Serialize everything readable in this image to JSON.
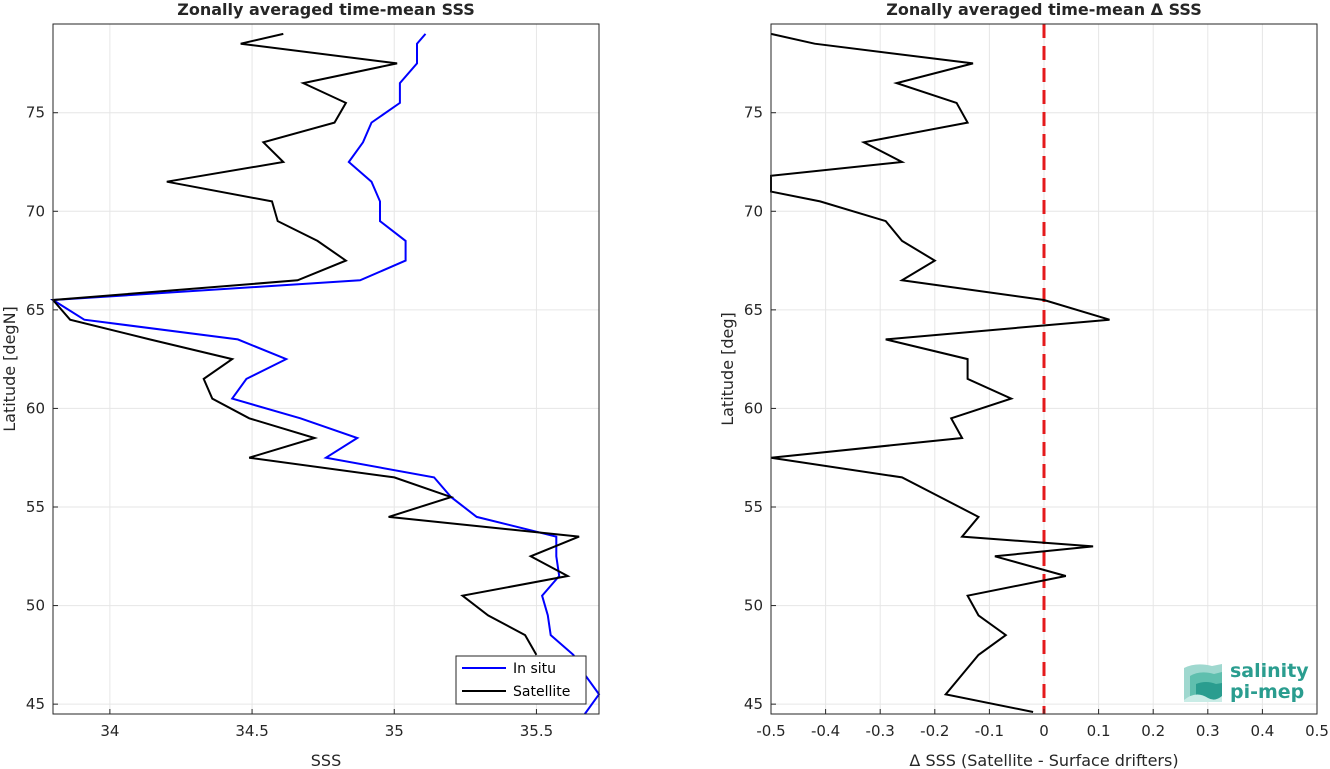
{
  "chart_data": [
    {
      "type": "line",
      "title": "Zonally averaged time-mean SSS",
      "xlabel": "SSS",
      "ylabel": "Latitude [degN]",
      "xlim": [
        33.8,
        35.72
      ],
      "ylim": [
        44.5,
        79.5
      ],
      "xticks": [
        "34",
        "34.5",
        "35",
        "35.5"
      ],
      "xtick_values": [
        34,
        34.5,
        35,
        35.5
      ],
      "yticks": [
        "45",
        "50",
        "55",
        "60",
        "65",
        "70",
        "75"
      ],
      "ytick_values": [
        45,
        50,
        55,
        60,
        65,
        70,
        75
      ],
      "grid": true,
      "legend": "bottom-right",
      "series": [
        {
          "name": "In situ",
          "color": "#0000ff",
          "points": [
            [
              35.11,
              79
            ],
            [
              35.08,
              78.5
            ],
            [
              35.08,
              77.5
            ],
            [
              35.02,
              76.5
            ],
            [
              35.02,
              75.5
            ],
            [
              34.92,
              74.5
            ],
            [
              34.89,
              73.5
            ],
            [
              34.84,
              72.5
            ],
            [
              34.92,
              71.5
            ],
            [
              34.95,
              70.5
            ],
            [
              34.95,
              69.5
            ],
            [
              35.04,
              68.5
            ],
            [
              35.04,
              67.5
            ],
            [
              34.88,
              66.5
            ],
            [
              33.8,
              65.5
            ],
            [
              33.91,
              64.5
            ],
            [
              34.45,
              63.5
            ],
            [
              34.62,
              62.5
            ],
            [
              34.48,
              61.5
            ],
            [
              34.43,
              60.5
            ],
            [
              34.67,
              59.5
            ],
            [
              34.87,
              58.5
            ],
            [
              34.76,
              57.5
            ],
            [
              35.14,
              56.5
            ],
            [
              35.2,
              55.5
            ],
            [
              35.29,
              54.5
            ],
            [
              35.57,
              53.5
            ],
            [
              35.57,
              52.5
            ],
            [
              35.58,
              51.5
            ],
            [
              35.52,
              50.5
            ],
            [
              35.54,
              49.5
            ],
            [
              35.55,
              48.5
            ],
            [
              35.63,
              47.5
            ],
            [
              35.67,
              46.5
            ],
            [
              35.72,
              45.5
            ],
            [
              35.67,
              44.5
            ]
          ]
        },
        {
          "name": "Satellite",
          "color": "#000000",
          "points": [
            [
              34.61,
              79
            ],
            [
              34.46,
              78.5
            ],
            [
              35.01,
              77.5
            ],
            [
              34.68,
              76.5
            ],
            [
              34.83,
              75.5
            ],
            [
              34.79,
              74.5
            ],
            [
              34.54,
              73.5
            ],
            [
              34.61,
              72.5
            ],
            [
              34.2,
              71.5
            ],
            [
              34.57,
              70.5
            ],
            [
              34.59,
              69.5
            ],
            [
              34.73,
              68.5
            ],
            [
              34.83,
              67.5
            ],
            [
              34.66,
              66.5
            ],
            [
              33.8,
              65.5
            ],
            [
              33.86,
              64.5
            ],
            [
              34.14,
              63.5
            ],
            [
              34.43,
              62.5
            ],
            [
              34.33,
              61.5
            ],
            [
              34.36,
              60.5
            ],
            [
              34.49,
              59.5
            ],
            [
              34.72,
              58.5
            ],
            [
              34.49,
              57.5
            ],
            [
              35.0,
              56.5
            ],
            [
              35.2,
              55.5
            ],
            [
              34.98,
              54.5
            ],
            [
              35.65,
              53.5
            ],
            [
              35.48,
              52.5
            ],
            [
              35.61,
              51.5
            ],
            [
              35.24,
              50.5
            ],
            [
              35.33,
              49.5
            ],
            [
              35.46,
              48.5
            ],
            [
              35.5,
              47.5
            ]
          ]
        }
      ]
    },
    {
      "type": "line",
      "title": "Zonally averaged time-mean Δ SSS",
      "xlabel": "Δ SSS (Satellite - Surface drifters)",
      "ylabel": "Latitude [deg]",
      "xlim": [
        -0.5,
        0.5
      ],
      "ylim": [
        44.5,
        79.5
      ],
      "xticks": [
        "-0.5",
        "-0.4",
        "-0.3",
        "-0.2",
        "-0.1",
        "0",
        "0.1",
        "0.2",
        "0.3",
        "0.4",
        "0.5"
      ],
      "xtick_values": [
        -0.5,
        -0.4,
        -0.3,
        -0.2,
        -0.1,
        0,
        0.1,
        0.2,
        0.3,
        0.4,
        0.5
      ],
      "yticks": [
        "45",
        "50",
        "55",
        "60",
        "65",
        "70",
        "75"
      ],
      "ytick_values": [
        45,
        50,
        55,
        60,
        65,
        70,
        75
      ],
      "grid": true,
      "reference_line": {
        "x": 0,
        "color": "#e41a1c",
        "style": "dashed"
      },
      "series": [
        {
          "color": "#000000",
          "points": [
            [
              -0.5,
              79
            ],
            [
              -0.42,
              78.5
            ],
            [
              -0.13,
              77.5
            ],
            [
              -0.27,
              76.5
            ],
            [
              -0.16,
              75.5
            ],
            [
              -0.14,
              74.5
            ],
            [
              -0.33,
              73.5
            ],
            [
              -0.26,
              72.5
            ],
            [
              -0.5,
              71.8
            ],
            [
              -0.5,
              71
            ],
            [
              -0.41,
              70.5
            ],
            [
              -0.29,
              69.5
            ],
            [
              -0.26,
              68.5
            ],
            [
              -0.2,
              67.5
            ],
            [
              -0.26,
              66.5
            ],
            [
              0.0,
              65.5
            ],
            [
              0.12,
              64.5
            ],
            [
              -0.29,
              63.5
            ],
            [
              -0.14,
              62.5
            ],
            [
              -0.14,
              61.5
            ],
            [
              -0.06,
              60.5
            ],
            [
              -0.17,
              59.5
            ],
            [
              -0.15,
              58.5
            ],
            [
              -0.5,
              57.5
            ],
            [
              -0.26,
              56.5
            ],
            [
              -0.19,
              55.5
            ],
            [
              -0.12,
              54.5
            ],
            [
              -0.15,
              53.5
            ],
            [
              0.09,
              53
            ],
            [
              -0.09,
              52.5
            ],
            [
              0.04,
              51.5
            ],
            [
              -0.14,
              50.5
            ],
            [
              -0.12,
              49.5
            ],
            [
              -0.07,
              48.5
            ],
            [
              -0.12,
              47.5
            ],
            [
              -0.15,
              46.5
            ],
            [
              -0.18,
              45.5
            ],
            [
              -0.02,
              44.6
            ]
          ]
        }
      ]
    }
  ],
  "logo": {
    "line1": "salinity",
    "line2": "pi-mep"
  }
}
